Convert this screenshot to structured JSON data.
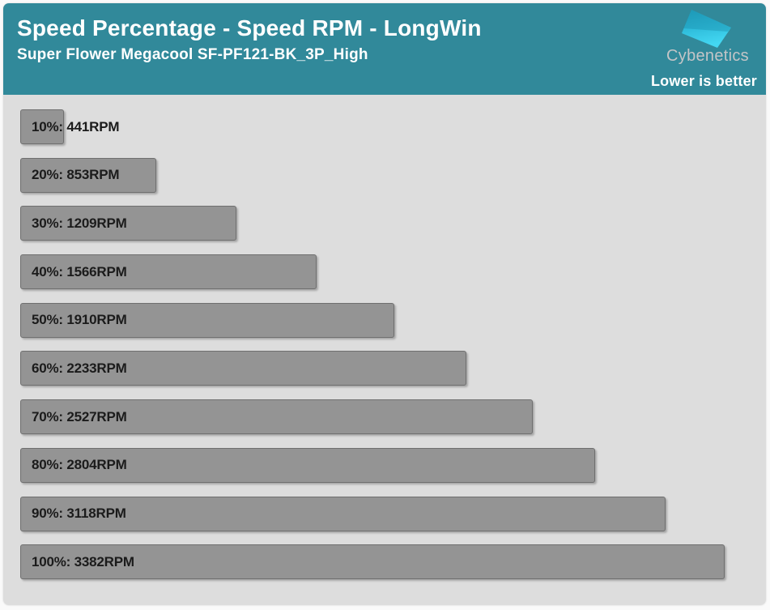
{
  "header": {
    "title": "Speed Percentage - Speed RPM - LongWin",
    "subtitle": "Super Flower Megacool SF-PF121-BK_3P_High",
    "brand": "Cybenetics",
    "note": "Lower is better"
  },
  "colors": {
    "header_bg": "#31899a",
    "chart_bg": "#dddddd",
    "bar_fill": "#949494",
    "bar_border": "#6f6f6f",
    "bar_text": "#1b1b1b",
    "brand_text": "#c3c5c7",
    "logo_gradient_top": "#1e9fbe",
    "logo_gradient_bottom": "#43d7f2"
  },
  "chart_data": {
    "type": "bar",
    "orientation": "horizontal",
    "title": "Speed Percentage - Speed RPM - LongWin",
    "subtitle": "Super Flower Megacool SF-PF121-BK_3P_High",
    "annotation": "Lower is better",
    "categories": [
      "10%",
      "20%",
      "30%",
      "40%",
      "50%",
      "60%",
      "70%",
      "80%",
      "90%",
      "100%"
    ],
    "values": [
      441,
      853,
      1209,
      1566,
      1910,
      2233,
      2527,
      2804,
      3118,
      3382
    ],
    "unit": "RPM",
    "label_format": "{category}: {value}RPM",
    "legend": "none",
    "grid": "off"
  }
}
